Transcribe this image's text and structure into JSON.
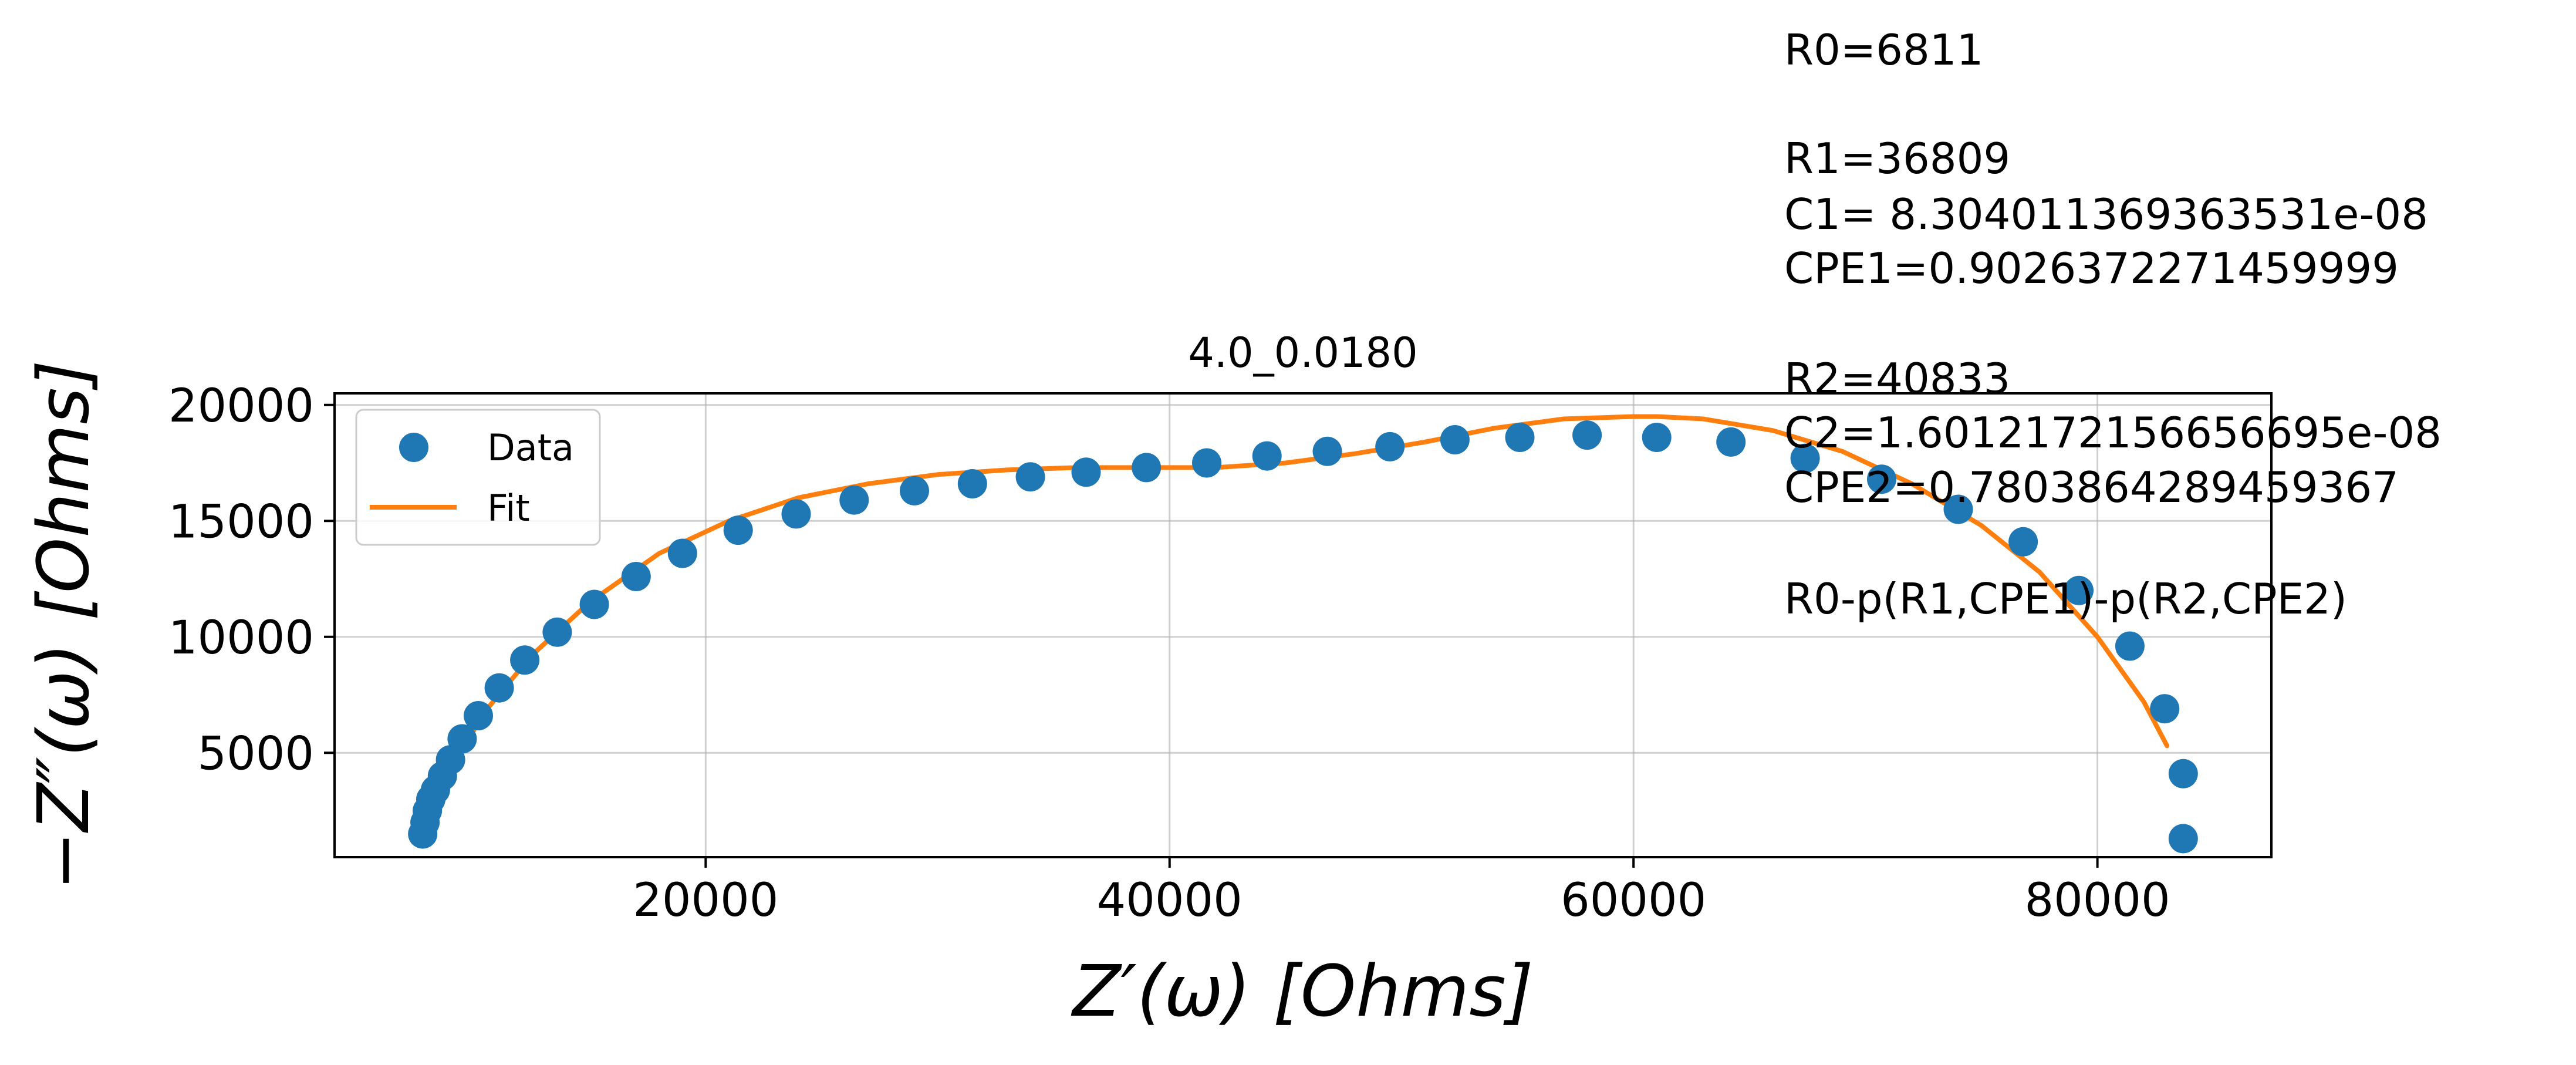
{
  "chart_data": {
    "type": "scatter",
    "title": "4.0_0.0180",
    "xlabel": "Z′(ω) [Ohms]",
    "ylabel": "−Z″(ω) [Ohms]",
    "xlim": [
      4000,
      87500
    ],
    "ylim": [
      500,
      20500
    ],
    "xticks": [
      20000,
      40000,
      60000,
      80000
    ],
    "yticks": [
      5000,
      10000,
      15000,
      20000
    ],
    "grid": true,
    "legend_position": "top-left",
    "series": [
      {
        "name": "Data",
        "style": "markers",
        "color": "#1f77b4",
        "x": [
          7800,
          7900,
          8000,
          8150,
          8350,
          8650,
          9000,
          9500,
          10200,
          11100,
          12200,
          13600,
          15200,
          17000,
          19000,
          21400,
          23900,
          26400,
          29000,
          31500,
          34000,
          36400,
          39000,
          41600,
          44200,
          46800,
          49500,
          52300,
          55100,
          58000,
          61000,
          64200,
          67400,
          70700,
          74000,
          76800,
          79200,
          81400,
          82900,
          83700,
          83700
        ],
        "y": [
          1500,
          2000,
          2500,
          3000,
          3400,
          4000,
          4700,
          5600,
          6600,
          7800,
          9000,
          10200,
          11400,
          12600,
          13600,
          14600,
          15300,
          15900,
          16300,
          16600,
          16900,
          17100,
          17300,
          17500,
          17800,
          18000,
          18200,
          18500,
          18600,
          18700,
          18600,
          18400,
          17700,
          16800,
          15500,
          14100,
          12000,
          9600,
          6900,
          4100,
          1300
        ]
      },
      {
        "name": "Fit",
        "style": "line",
        "color": "#ff7f0e",
        "x": [
          8000,
          9000,
          10500,
          12500,
          15000,
          18000,
          21000,
          24000,
          27000,
          30000,
          33000,
          36000,
          39000,
          42000,
          45000,
          48000,
          51000,
          54000,
          57000,
          60000,
          61000,
          63000,
          66000,
          69000,
          72000,
          75000,
          77500,
          80000,
          82000,
          83000
        ],
        "y": [
          2100,
          4300,
          6800,
          9200,
          11500,
          13600,
          15000,
          16000,
          16600,
          17000,
          17200,
          17300,
          17300,
          17300,
          17500,
          17900,
          18400,
          19000,
          19400,
          19500,
          19500,
          19400,
          18900,
          18000,
          16600,
          14800,
          12800,
          10000,
          7200,
          5300
        ]
      }
    ],
    "annotations": [
      "R0=6811",
      "",
      "R1=36809",
      "C1= 8.304011369363531e-08",
      "CPE1=0.9026372271459999",
      "",
      "R2=40833",
      "C2=1.6012172156656695e-08",
      "CPE2=0.7803864289459367",
      "",
      "R0-p(R1,CPE1)-p(R2,CPE2)"
    ]
  }
}
